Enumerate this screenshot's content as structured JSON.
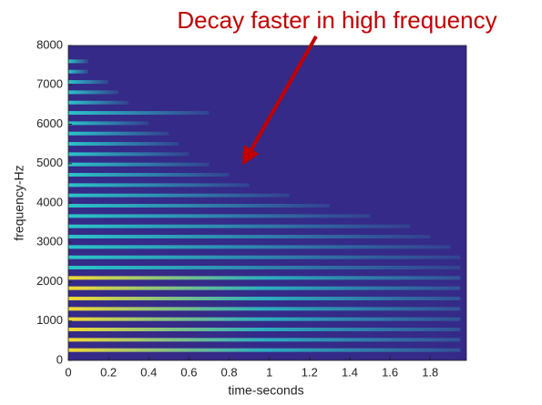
{
  "chart_data": {
    "type": "spectrogram",
    "annotation": "Decay faster in high frequency",
    "xlabel": "time-seconds",
    "ylabel": "frequency-Hz",
    "xlim": [
      0,
      1.98
    ],
    "ylim": [
      0,
      8000
    ],
    "xticks": [
      0,
      0.2,
      0.4,
      0.6,
      0.8,
      1,
      1.2,
      1.4,
      1.6,
      1.8
    ],
    "yticks": [
      0,
      1000,
      2000,
      3000,
      4000,
      5000,
      6000,
      7000,
      8000
    ],
    "background_color": "#352a87",
    "band_color": "#2bc4c8",
    "low_band_color": "#f2d935",
    "annotation_color": "#c00000",
    "bands": {
      "frequencies": [
        262,
        524,
        786,
        1048,
        1310,
        1572,
        1834,
        2096,
        2358,
        2620,
        2882,
        3144,
        3406,
        3668,
        3930,
        4192,
        4454,
        4716,
        4978,
        5240,
        5502,
        5764,
        6026,
        6288,
        6550,
        6812,
        7074,
        7336,
        7598
      ],
      "durations": [
        1.95,
        1.95,
        1.95,
        1.95,
        1.95,
        1.95,
        1.95,
        1.95,
        1.95,
        1.95,
        1.9,
        1.8,
        1.7,
        1.5,
        1.3,
        1.1,
        0.9,
        0.8,
        0.7,
        0.6,
        0.55,
        0.5,
        0.4,
        0.7,
        0.3,
        0.25,
        0.2,
        0.1,
        0.1
      ]
    }
  }
}
